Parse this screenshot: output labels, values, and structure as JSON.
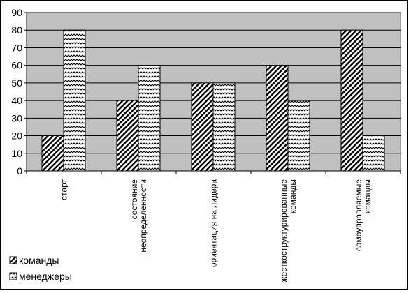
{
  "chart_data": {
    "type": "bar",
    "categories": [
      [
        "старт"
      ],
      [
        "состояние",
        "неопределенности"
      ],
      [
        "ориентация на лидера"
      ],
      [
        "жесткоструктурированные",
        "команды"
      ],
      [
        "самоуправляемые",
        "команды"
      ]
    ],
    "series": [
      {
        "name": "команды",
        "values": [
          20,
          40,
          50,
          60,
          80
        ],
        "pattern": "diagonal-hatch"
      },
      {
        "name": "менеджеры",
        "values": [
          80,
          60,
          50,
          40,
          20
        ],
        "pattern": "zigzag-hatch"
      }
    ],
    "ylim": [
      0,
      90
    ],
    "yticks": [
      0,
      10,
      20,
      30,
      40,
      50,
      60,
      70,
      80,
      90
    ],
    "grid": true,
    "plot_background": "#c0c0c0",
    "legend_position": "bottom-left",
    "title": "",
    "xlabel": "",
    "ylabel": ""
  }
}
